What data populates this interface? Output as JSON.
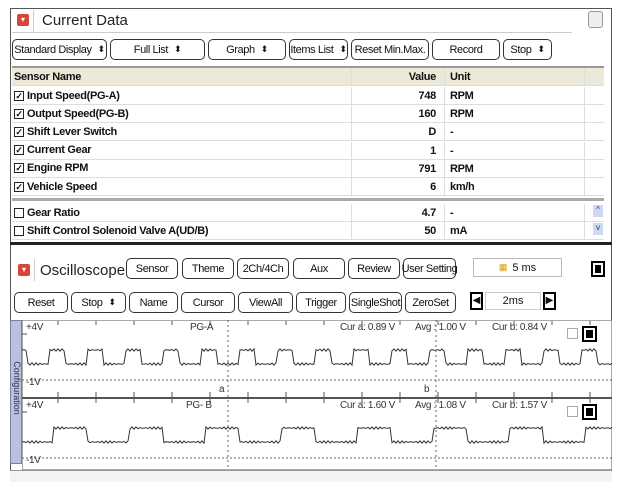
{
  "current_data": {
    "title": "Current Data",
    "toolbar": [
      "Standard Display",
      "Full List",
      "Graph",
      "Items List",
      "Reset Min.Max.",
      "Record",
      "Stop"
    ],
    "columns": {
      "name": "Sensor Name",
      "value": "Value",
      "unit": "Unit"
    },
    "rows": [
      {
        "name": "Input Speed(PG-A)",
        "value": "748",
        "unit": "RPM",
        "checked": true
      },
      {
        "name": "Output Speed(PG-B)",
        "value": "160",
        "unit": "RPM",
        "checked": true
      },
      {
        "name": "Shift Lever Switch",
        "value": "D",
        "unit": "-",
        "checked": true
      },
      {
        "name": "Current Gear",
        "value": "1",
        "unit": "-",
        "checked": true
      },
      {
        "name": "Engine RPM",
        "value": "791",
        "unit": "RPM",
        "checked": true
      },
      {
        "name": "Vehicle Speed",
        "value": "6",
        "unit": "km/h",
        "checked": true
      },
      {
        "name": "Gear Ratio",
        "value": "4.7",
        "unit": "-",
        "checked": false
      },
      {
        "name": "Shift Control Solenoid Valve A(UD/B)",
        "value": "50",
        "unit": "mA",
        "checked": false
      }
    ]
  },
  "oscilloscope": {
    "title": "Oscilloscope",
    "toolbar1": [
      "Sensor",
      "Theme",
      "2Ch/4Ch",
      "Aux",
      "Review",
      "User Setting"
    ],
    "timebase": "5 ms",
    "toolbar2": [
      "Reset",
      "Stop",
      "Name",
      "Cursor",
      "ViewAll",
      "Trigger",
      "SingleShot",
      "ZeroSet"
    ],
    "time_div": "2ms",
    "side_tab": "Configuration",
    "channels": [
      {
        "name": "PG-A",
        "top": "+4V",
        "bottom": "-1V",
        "cur_a": "Cur a: 0.89 V",
        "avg": "Avg  : 1.00 V",
        "cur_b": "Cur b: 0.84 V"
      },
      {
        "name": "PG- B",
        "top": "+4V",
        "bottom": "-1V",
        "cur_a": "Cur a: 1.60 V",
        "avg": "Avg  : 1.08 V",
        "cur_b": "Cur b: 1.57 V"
      }
    ],
    "cursor_a": "a",
    "cursor_b": "b"
  },
  "colors": {
    "accent": "#d9443a",
    "header_bg": "#ece9d8"
  }
}
